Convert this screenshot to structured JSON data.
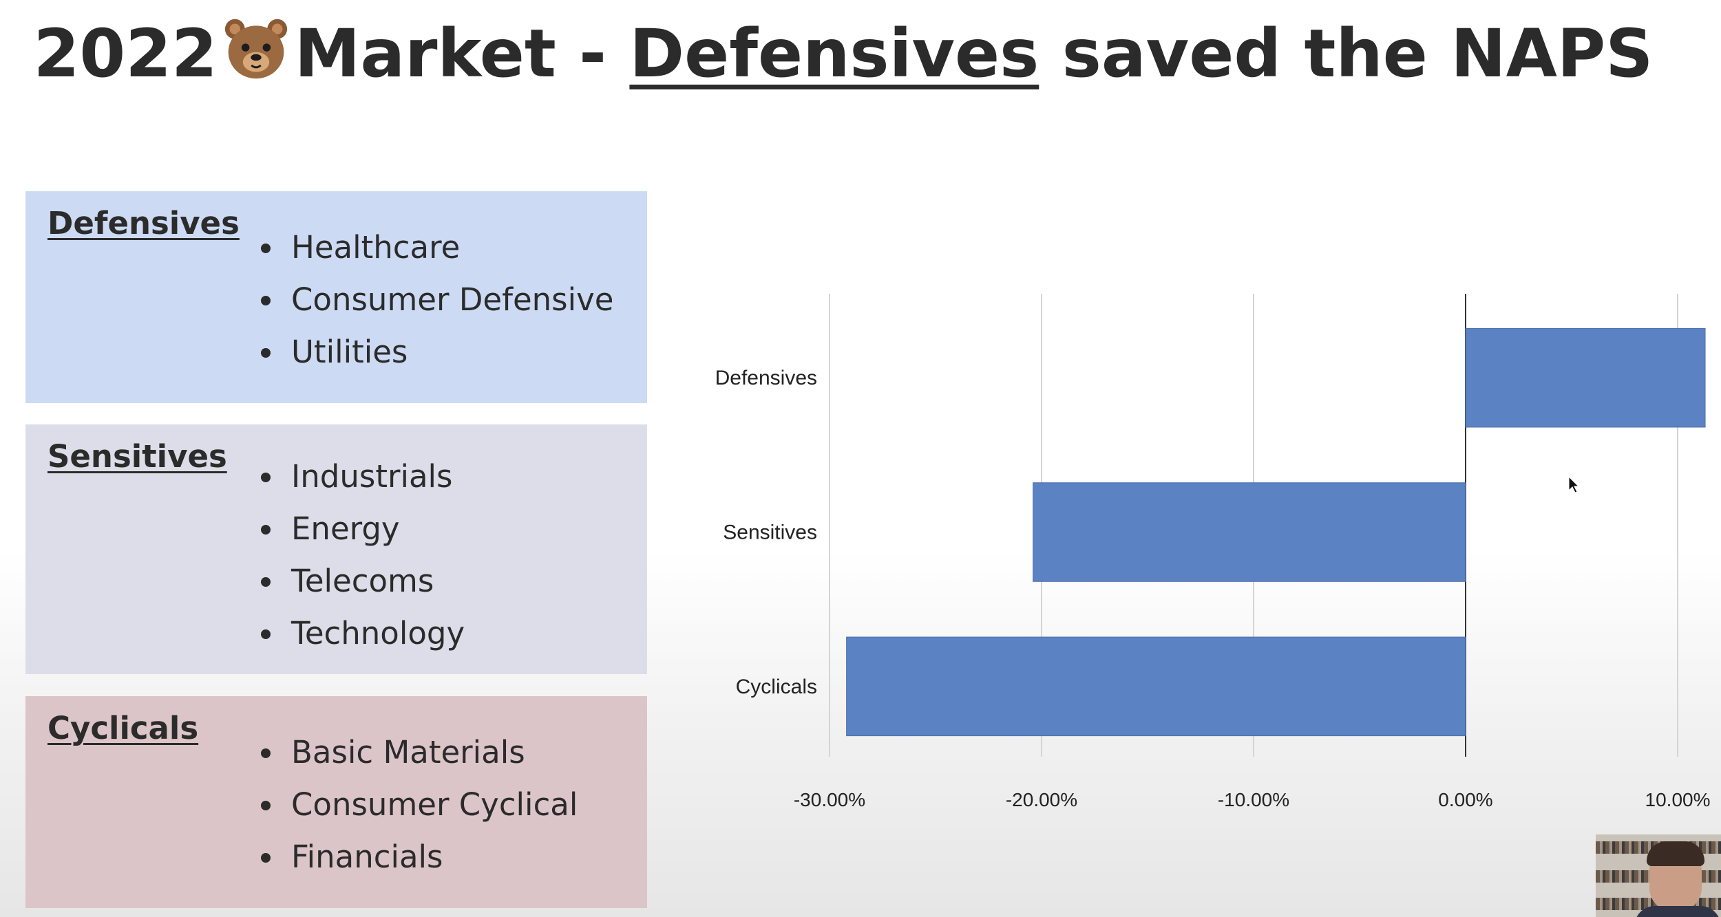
{
  "title": {
    "prefix": "2022",
    "bear_icon": "bear-face-icon",
    "middle": "Market - ",
    "highlight": "Defensives",
    "suffix": " saved the NAPS"
  },
  "groups": [
    {
      "name": "Defensives",
      "items": [
        "Healthcare",
        "Consumer Defensive",
        "Utilities"
      ],
      "color": "#cddaf3"
    },
    {
      "name": "Sensitives",
      "items": [
        "Industrials",
        "Energy",
        "Telecoms",
        "Technology"
      ],
      "color": "#dcdde8"
    },
    {
      "name": "Cyclicals",
      "items": [
        "Basic Materials",
        "Consumer Cyclical",
        "Financials"
      ],
      "color": "#dcc5c8"
    }
  ],
  "chart_data": {
    "type": "bar",
    "orientation": "horizontal",
    "categories": [
      "Defensives",
      "Sensitives",
      "Cyclicals"
    ],
    "values": [
      11.3,
      -20.4,
      -29.2
    ],
    "xlim": [
      -30,
      10
    ],
    "xticks": [
      -30,
      -20,
      -10,
      0,
      10
    ],
    "xtick_labels": [
      "-30.00%",
      "-20.00%",
      "-10.00%",
      "0.00%",
      "10.00%"
    ],
    "title": "",
    "xlabel": "",
    "ylabel": "",
    "grid": "vertical",
    "bar_color": "#5b82c3"
  }
}
